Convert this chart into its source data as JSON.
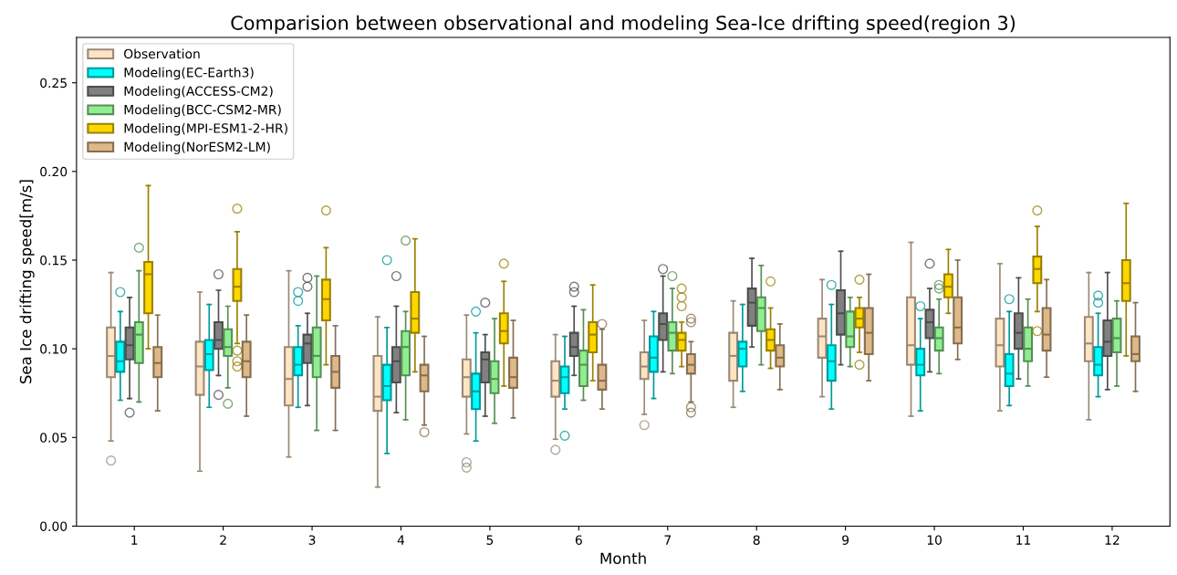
{
  "chart_data": {
    "type": "box",
    "title": "Comparision between observational and modeling Sea-Ice drifting speed(region 3)",
    "xlabel": "Month",
    "ylabel": "Sea Ice drifting speed[m/s]",
    "categories": [
      "1",
      "2",
      "3",
      "4",
      "5",
      "6",
      "7",
      "8",
      "9",
      "10",
      "11",
      "12"
    ],
    "ylim": [
      0,
      0.2756
    ],
    "yticks": [
      {
        "value": 0,
        "label": "0.00"
      },
      {
        "value": 0.05,
        "label": "0.05"
      },
      {
        "value": 0.1,
        "label": "0.10"
      },
      {
        "value": 0.15,
        "label": "0.15"
      },
      {
        "value": 0.2,
        "label": "0.20"
      },
      {
        "value": 0.25,
        "label": "0.25"
      }
    ],
    "grid": false,
    "legend": "top left",
    "marker": "circle",
    "series": [
      {
        "name": "Observation",
        "color": "#ffe4c4",
        "boxes": [
          {
            "low": 0.048,
            "q1": 0.084,
            "median": 0.096,
            "q3": 0.112,
            "high": 0.143,
            "outliers": [
              0.037
            ]
          },
          {
            "low": 0.031,
            "q1": 0.074,
            "median": 0.09,
            "q3": 0.104,
            "high": 0.132
          },
          {
            "low": 0.039,
            "q1": 0.068,
            "median": 0.083,
            "q3": 0.101,
            "high": 0.144
          },
          {
            "low": 0.022,
            "q1": 0.065,
            "median": 0.073,
            "q3": 0.096,
            "high": 0.118
          },
          {
            "low": 0.052,
            "q1": 0.073,
            "median": 0.084,
            "q3": 0.094,
            "high": 0.119,
            "outliers": [
              0.036,
              0.033
            ]
          },
          {
            "low": 0.049,
            "q1": 0.073,
            "median": 0.082,
            "q3": 0.093,
            "high": 0.108,
            "outliers": [
              0.043
            ]
          },
          {
            "low": 0.063,
            "q1": 0.083,
            "median": 0.09,
            "q3": 0.098,
            "high": 0.116,
            "outliers": [
              0.057
            ]
          },
          {
            "low": 0.067,
            "q1": 0.082,
            "median": 0.096,
            "q3": 0.109,
            "high": 0.127
          },
          {
            "low": 0.073,
            "q1": 0.095,
            "median": 0.107,
            "q3": 0.117,
            "high": 0.139
          },
          {
            "low": 0.062,
            "q1": 0.091,
            "median": 0.102,
            "q3": 0.129,
            "high": 0.16
          },
          {
            "low": 0.065,
            "q1": 0.09,
            "median": 0.102,
            "q3": 0.117,
            "high": 0.148
          },
          {
            "low": 0.06,
            "q1": 0.093,
            "median": 0.103,
            "q3": 0.118,
            "high": 0.143
          }
        ]
      },
      {
        "name": "Modeling(EC-Earth3)",
        "color": "#00ffff",
        "boxes": [
          {
            "low": 0.071,
            "q1": 0.087,
            "median": 0.093,
            "q3": 0.104,
            "high": 0.121,
            "outliers": [
              0.132
            ]
          },
          {
            "low": 0.067,
            "q1": 0.088,
            "median": 0.097,
            "q3": 0.105,
            "high": 0.125
          },
          {
            "low": 0.067,
            "q1": 0.085,
            "median": 0.091,
            "q3": 0.101,
            "high": 0.113,
            "outliers": [
              0.132,
              0.127
            ]
          },
          {
            "low": 0.041,
            "q1": 0.071,
            "median": 0.079,
            "q3": 0.091,
            "high": 0.112,
            "outliers": [
              0.15
            ]
          },
          {
            "low": 0.048,
            "q1": 0.066,
            "median": 0.076,
            "q3": 0.086,
            "high": 0.109,
            "outliers": [
              0.121
            ]
          },
          {
            "low": 0.066,
            "q1": 0.075,
            "median": 0.084,
            "q3": 0.09,
            "high": 0.107,
            "outliers": [
              0.051
            ]
          },
          {
            "low": 0.072,
            "q1": 0.087,
            "median": 0.095,
            "q3": 0.107,
            "high": 0.121
          },
          {
            "low": 0.076,
            "q1": 0.09,
            "median": 0.1,
            "q3": 0.104,
            "high": 0.125
          },
          {
            "low": 0.066,
            "q1": 0.082,
            "median": 0.093,
            "q3": 0.102,
            "high": 0.125,
            "outliers": [
              0.136
            ]
          },
          {
            "low": 0.065,
            "q1": 0.085,
            "median": 0.091,
            "q3": 0.1,
            "high": 0.117,
            "outliers": [
              0.124
            ]
          },
          {
            "low": 0.068,
            "q1": 0.079,
            "median": 0.086,
            "q3": 0.097,
            "high": 0.121,
            "outliers": [
              0.128
            ]
          },
          {
            "low": 0.073,
            "q1": 0.085,
            "median": 0.091,
            "q3": 0.101,
            "high": 0.12,
            "outliers": [
              0.13,
              0.126
            ]
          }
        ]
      },
      {
        "name": "Modeling(ACCESS-CM2)",
        "color": "#808080",
        "boxes": [
          {
            "low": 0.072,
            "q1": 0.094,
            "median": 0.102,
            "q3": 0.112,
            "high": 0.129,
            "outliers": [
              0.064
            ]
          },
          {
            "low": 0.085,
            "q1": 0.1,
            "median": 0.105,
            "q3": 0.115,
            "high": 0.133,
            "outliers": [
              0.142,
              0.074
            ]
          },
          {
            "low": 0.068,
            "q1": 0.092,
            "median": 0.103,
            "q3": 0.108,
            "high": 0.12,
            "outliers": [
              0.14,
              0.135
            ]
          },
          {
            "low": 0.064,
            "q1": 0.081,
            "median": 0.093,
            "q3": 0.101,
            "high": 0.124,
            "outliers": [
              0.141
            ]
          },
          {
            "low": 0.062,
            "q1": 0.081,
            "median": 0.094,
            "q3": 0.098,
            "high": 0.108,
            "outliers": [
              0.126
            ]
          },
          {
            "low": 0.085,
            "q1": 0.096,
            "median": 0.101,
            "q3": 0.109,
            "high": 0.124,
            "outliers": [
              0.135,
              0.132
            ]
          },
          {
            "low": 0.087,
            "q1": 0.105,
            "median": 0.114,
            "q3": 0.12,
            "high": 0.141,
            "outliers": [
              0.145
            ]
          },
          {
            "low": 0.101,
            "q1": 0.113,
            "median": 0.126,
            "q3": 0.134,
            "high": 0.151
          },
          {
            "low": 0.091,
            "q1": 0.108,
            "median": 0.12,
            "q3": 0.133,
            "high": 0.155
          },
          {
            "low": 0.087,
            "q1": 0.106,
            "median": 0.115,
            "q3": 0.122,
            "high": 0.134,
            "outliers": [
              0.148
            ]
          },
          {
            "low": 0.083,
            "q1": 0.1,
            "median": 0.109,
            "q3": 0.12,
            "high": 0.14
          },
          {
            "low": 0.077,
            "q1": 0.096,
            "median": 0.104,
            "q3": 0.116,
            "high": 0.143
          }
        ]
      },
      {
        "name": "Modeling(BCC-CSM2-MR)",
        "color": "#90ee90",
        "boxes": [
          {
            "low": 0.07,
            "q1": 0.092,
            "median": 0.108,
            "q3": 0.115,
            "high": 0.144,
            "outliers": [
              0.157
            ]
          },
          {
            "low": 0.078,
            "q1": 0.096,
            "median": 0.101,
            "q3": 0.111,
            "high": 0.124,
            "outliers": [
              0.069
            ]
          },
          {
            "low": 0.054,
            "q1": 0.084,
            "median": 0.096,
            "q3": 0.112,
            "high": 0.141
          },
          {
            "low": 0.06,
            "q1": 0.085,
            "median": 0.101,
            "q3": 0.11,
            "high": 0.121,
            "outliers": [
              0.161
            ]
          },
          {
            "low": 0.058,
            "q1": 0.075,
            "median": 0.083,
            "q3": 0.093,
            "high": 0.117
          },
          {
            "low": 0.071,
            "q1": 0.079,
            "median": 0.091,
            "q3": 0.099,
            "high": 0.122
          },
          {
            "low": 0.086,
            "q1": 0.099,
            "median": 0.109,
            "q3": 0.115,
            "high": 0.134,
            "outliers": [
              0.141
            ]
          },
          {
            "low": 0.091,
            "q1": 0.11,
            "median": 0.123,
            "q3": 0.129,
            "high": 0.147
          },
          {
            "low": 0.09,
            "q1": 0.101,
            "median": 0.107,
            "q3": 0.121,
            "high": 0.129
          },
          {
            "low": 0.086,
            "q1": 0.099,
            "median": 0.106,
            "q3": 0.112,
            "high": 0.128,
            "outliers": [
              0.136,
              0.134
            ]
          },
          {
            "low": 0.079,
            "q1": 0.093,
            "median": 0.1,
            "q3": 0.112,
            "high": 0.128
          },
          {
            "low": 0.079,
            "q1": 0.098,
            "median": 0.106,
            "q3": 0.117,
            "high": 0.127
          }
        ]
      },
      {
        "name": "Modeling(MPI-ESM1-2-HR)",
        "color": "#ffd700",
        "boxes": [
          {
            "low": 0.1,
            "q1": 0.12,
            "median": 0.142,
            "q3": 0.149,
            "high": 0.192
          },
          {
            "low": 0.103,
            "q1": 0.127,
            "median": 0.135,
            "q3": 0.145,
            "high": 0.166,
            "outliers": [
              0.179,
              0.099,
              0.093,
              0.09
            ]
          },
          {
            "low": 0.091,
            "q1": 0.116,
            "median": 0.128,
            "q3": 0.139,
            "high": 0.157,
            "outliers": [
              0.178
            ]
          },
          {
            "low": 0.087,
            "q1": 0.109,
            "median": 0.117,
            "q3": 0.132,
            "high": 0.162
          },
          {
            "low": 0.079,
            "q1": 0.103,
            "median": 0.11,
            "q3": 0.12,
            "high": 0.138,
            "outliers": [
              0.148
            ]
          },
          {
            "low": 0.082,
            "q1": 0.098,
            "median": 0.108,
            "q3": 0.115,
            "high": 0.136
          },
          {
            "low": 0.09,
            "q1": 0.099,
            "median": 0.105,
            "q3": 0.109,
            "high": 0.115,
            "outliers": [
              0.134,
              0.129,
              0.124
            ]
          },
          {
            "low": 0.089,
            "q1": 0.099,
            "median": 0.105,
            "q3": 0.111,
            "high": 0.123,
            "outliers": [
              0.138
            ]
          },
          {
            "low": 0.098,
            "q1": 0.112,
            "median": 0.117,
            "q3": 0.123,
            "high": 0.129,
            "outliers": [
              0.139,
              0.091
            ]
          },
          {
            "low": 0.12,
            "q1": 0.129,
            "median": 0.135,
            "q3": 0.142,
            "high": 0.156
          },
          {
            "low": 0.121,
            "q1": 0.137,
            "median": 0.145,
            "q3": 0.152,
            "high": 0.169,
            "outliers": [
              0.178,
              0.11
            ]
          },
          {
            "low": 0.096,
            "q1": 0.127,
            "median": 0.137,
            "q3": 0.15,
            "high": 0.182
          }
        ]
      },
      {
        "name": "Modeling(NorESM2-LM)",
        "color": "#deb887",
        "boxes": [
          {
            "low": 0.065,
            "q1": 0.084,
            "median": 0.092,
            "q3": 0.101,
            "high": 0.119
          },
          {
            "low": 0.062,
            "q1": 0.084,
            "median": 0.093,
            "q3": 0.104,
            "high": 0.119
          },
          {
            "low": 0.054,
            "q1": 0.078,
            "median": 0.087,
            "q3": 0.096,
            "high": 0.113
          },
          {
            "low": 0.057,
            "q1": 0.076,
            "median": 0.085,
            "q3": 0.091,
            "high": 0.107,
            "outliers": [
              0.053
            ]
          },
          {
            "low": 0.061,
            "q1": 0.078,
            "median": 0.084,
            "q3": 0.095,
            "high": 0.116
          },
          {
            "low": 0.066,
            "q1": 0.077,
            "median": 0.082,
            "q3": 0.091,
            "high": 0.111,
            "outliers": [
              0.114
            ]
          },
          {
            "low": 0.07,
            "q1": 0.086,
            "median": 0.091,
            "q3": 0.097,
            "high": 0.104,
            "outliers": [
              0.117,
              0.115,
              0.067,
              0.064
            ]
          },
          {
            "low": 0.077,
            "q1": 0.09,
            "median": 0.095,
            "q3": 0.102,
            "high": 0.114
          },
          {
            "low": 0.082,
            "q1": 0.097,
            "median": 0.109,
            "q3": 0.123,
            "high": 0.142
          },
          {
            "low": 0.094,
            "q1": 0.103,
            "median": 0.112,
            "q3": 0.129,
            "high": 0.15
          },
          {
            "low": 0.084,
            "q1": 0.099,
            "median": 0.108,
            "q3": 0.123,
            "high": 0.139
          },
          {
            "low": 0.076,
            "q1": 0.093,
            "median": 0.097,
            "q3": 0.107,
            "high": 0.126
          }
        ]
      }
    ]
  }
}
